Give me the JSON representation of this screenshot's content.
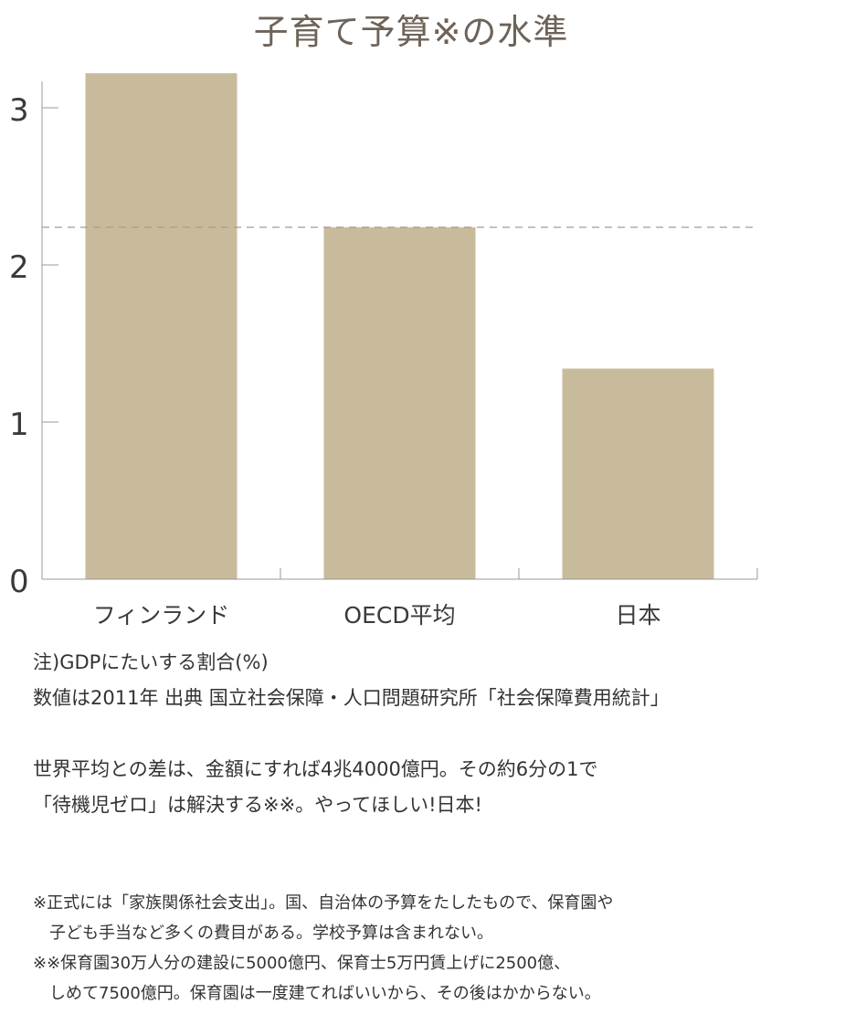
{
  "chart_data": {
    "type": "bar",
    "title": "子育て予算※の水準",
    "categories": [
      "フィンランド",
      "OECD平均",
      "日本"
    ],
    "values": [
      3.22,
      2.24,
      1.34
    ],
    "ylim": [
      0,
      3.4
    ],
    "yticks": [
      0,
      1,
      2,
      3
    ],
    "reference_line": 2.24,
    "bar_color": "#c8bb9b",
    "axis_color": "#9a9a9a"
  },
  "notes": {
    "line1": "注)GDPにたいする割合(%)",
    "line2": "数値は2011年 出典 国立社会保障・人口問題研究所「社会保障費用統計」",
    "line3": "世界平均との差は、金額にすれば4兆4000億円。その約6分の1で",
    "line4": "「待機児ゼロ」は解決する※※。やってほしい!日本!"
  },
  "footnotes": {
    "f1a": "※正式には「家族関係社会支出」。国、自治体の予算をたしたもので、保育園や",
    "f1b": "子ども手当など多くの費目がある。学校予算は含まれない。",
    "f2a": "※※保育園30万人分の建設に5000億円、保育士5万円賃上げに2500億、",
    "f2b": "しめて7500億円。保育園は一度建てればいいから、その後はかからない。"
  }
}
